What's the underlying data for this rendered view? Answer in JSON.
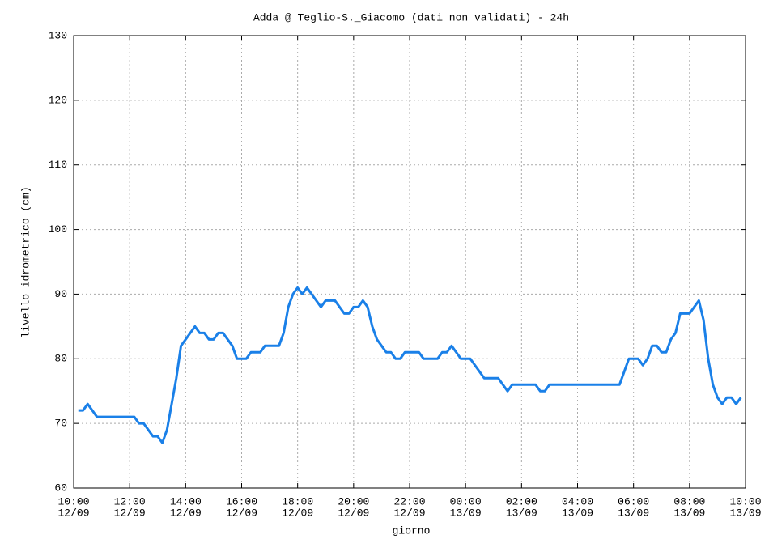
{
  "chart_data": {
    "type": "line",
    "title": "Adda @ Teglio-S._Giacomo (dati non validati) - 24h",
    "xlabel": "giorno",
    "ylabel": "livello idrometrico (cm)",
    "x": [
      "12/09 10:10",
      "12/09 10:20",
      "12/09 10:30",
      "12/09 10:40",
      "12/09 10:50",
      "12/09 12:10",
      "12/09 12:20",
      "12/09 12:30",
      "12/09 12:50",
      "12/09 13:00",
      "12/09 13:10",
      "12/09 13:20",
      "12/09 13:30",
      "12/09 13:40",
      "12/09 13:50",
      "12/09 14:00",
      "12/09 14:10",
      "12/09 14:20",
      "12/09 14:30",
      "12/09 14:40",
      "12/09 14:50",
      "12/09 15:00",
      "12/09 15:10",
      "12/09 15:20",
      "12/09 15:30",
      "12/09 15:40",
      "12/09 15:50",
      "12/09 16:10",
      "12/09 16:20",
      "12/09 16:40",
      "12/09 16:50",
      "12/09 17:20",
      "12/09 17:30",
      "12/09 17:40",
      "12/09 17:50",
      "12/09 18:00",
      "12/09 18:10",
      "12/09 18:20",
      "12/09 18:30",
      "12/09 18:40",
      "12/09 18:50",
      "12/09 19:00",
      "12/09 19:20",
      "12/09 19:30",
      "12/09 19:40",
      "12/09 19:50",
      "12/09 20:00",
      "12/09 20:10",
      "12/09 20:20",
      "12/09 20:30",
      "12/09 20:40",
      "12/09 20:50",
      "12/09 21:00",
      "12/09 21:10",
      "12/09 21:20",
      "12/09 21:30",
      "12/09 21:40",
      "12/09 21:50",
      "12/09 22:20",
      "12/09 22:30",
      "12/09 23:00",
      "12/09 23:10",
      "12/09 23:20",
      "12/09 23:30",
      "12/09 23:40",
      "12/09 23:50",
      "13/09 00:10",
      "13/09 00:20",
      "13/09 00:30",
      "13/09 00:40",
      "13/09 01:10",
      "13/09 01:20",
      "13/09 01:30",
      "13/09 01:40",
      "13/09 02:30",
      "13/09 02:40",
      "13/09 02:50",
      "13/09 03:00",
      "13/09 05:30",
      "13/09 05:40",
      "13/09 05:50",
      "13/09 06:10",
      "13/09 06:20",
      "13/09 06:30",
      "13/09 06:40",
      "13/09 06:50",
      "13/09 07:00",
      "13/09 07:10",
      "13/09 07:20",
      "13/09 07:30",
      "13/09 07:40",
      "13/09 08:00",
      "13/09 08:10",
      "13/09 08:20",
      "13/09 08:30",
      "13/09 08:40",
      "13/09 08:50",
      "13/09 09:00",
      "13/09 09:10",
      "13/09 09:20",
      "13/09 09:30",
      "13/09 09:40",
      "13/09 09:50"
    ],
    "series": [
      {
        "color": "#1a80e8",
        "values": [
          72,
          72,
          73,
          72,
          71,
          71,
          70,
          70,
          68,
          68,
          67,
          69,
          73,
          77,
          82,
          83,
          84,
          85,
          84,
          84,
          83,
          83,
          84,
          84,
          83,
          82,
          80,
          80,
          81,
          81,
          82,
          82,
          84,
          88,
          90,
          91,
          90,
          91,
          90,
          89,
          88,
          89,
          89,
          88,
          87,
          87,
          88,
          88,
          89,
          88,
          85,
          83,
          82,
          81,
          81,
          80,
          80,
          81,
          81,
          80,
          80,
          81,
          81,
          82,
          81,
          80,
          80,
          79,
          78,
          77,
          77,
          76,
          75,
          76,
          76,
          75,
          75,
          76,
          76,
          78,
          80,
          80,
          79,
          80,
          82,
          82,
          81,
          81,
          83,
          84,
          87,
          87,
          88,
          89,
          86,
          80,
          76,
          74,
          73,
          74,
          74,
          73,
          74
        ]
      }
    ],
    "xlim": [
      "12/09 10:00",
      "13/09 10:00"
    ],
    "xticks": [
      {
        "value": "12/09 10:00",
        "label": [
          "10:00",
          "12/09"
        ]
      },
      {
        "value": "12/09 12:00",
        "label": [
          "12:00",
          "12/09"
        ]
      },
      {
        "value": "12/09 14:00",
        "label": [
          "14:00",
          "12/09"
        ]
      },
      {
        "value": "12/09 16:00",
        "label": [
          "16:00",
          "12/09"
        ]
      },
      {
        "value": "12/09 18:00",
        "label": [
          "18:00",
          "12/09"
        ]
      },
      {
        "value": "12/09 20:00",
        "label": [
          "20:00",
          "12/09"
        ]
      },
      {
        "value": "12/09 22:00",
        "label": [
          "22:00",
          "12/09"
        ]
      },
      {
        "value": "13/09 00:00",
        "label": [
          "00:00",
          "13/09"
        ]
      },
      {
        "value": "13/09 02:00",
        "label": [
          "02:00",
          "13/09"
        ]
      },
      {
        "value": "13/09 04:00",
        "label": [
          "04:00",
          "13/09"
        ]
      },
      {
        "value": "13/09 06:00",
        "label": [
          "06:00",
          "13/09"
        ]
      },
      {
        "value": "13/09 08:00",
        "label": [
          "08:00",
          "13/09"
        ]
      },
      {
        "value": "13/09 10:00",
        "label": [
          "10:00",
          "13/09"
        ]
      }
    ],
    "ylim": [
      60,
      130
    ],
    "yticks": [
      60,
      70,
      80,
      90,
      100,
      110,
      120,
      130
    ],
    "grid": true
  }
}
